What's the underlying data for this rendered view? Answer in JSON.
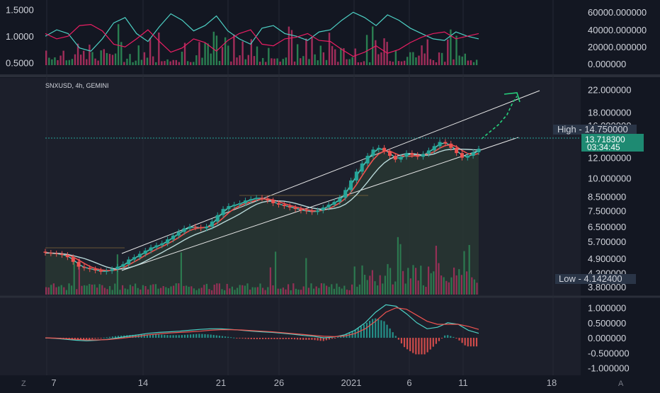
{
  "colors": {
    "background": "#131722",
    "pane": "#1c1f2b",
    "separator": "#2a2e39",
    "up": "#26a69a",
    "down": "#ef5350",
    "volume_up": "#2e8b57",
    "volume_down": "#b03060",
    "ma_fast": "#4dd0c4",
    "ma_mid": "#ef5350",
    "ma_slow": "#b8d8d8",
    "trend": "#e8e8e8",
    "arrow": "#26d07c",
    "price_tag": "#1e8a72",
    "hl_tag": "#2a3547"
  },
  "icons": {
    "left_corner": "Z",
    "right_corner": "A"
  },
  "chart_data": [
    {
      "type": "line",
      "pane": "top-indicator",
      "series": [
        {
          "name": "",
          "color": "#4dd0c4",
          "y": [
            1.0,
            1.12,
            1.05,
            0.78,
            0.72,
            0.95,
            1.25,
            1.35,
            1.05,
            0.9,
            1.18,
            1.42,
            1.3,
            1.1,
            1.2,
            1.38,
            1.1,
            0.95,
            0.85,
            1.15,
            1.2,
            1.05,
            1.0,
            0.92,
            1.08,
            1.12,
            1.3,
            1.45,
            1.35,
            1.2,
            1.4,
            1.3,
            1.15,
            1.05,
            0.95,
            0.92,
            1.08,
            1.0,
            0.95
          ]
        },
        {
          "name": "",
          "color": "#e91e63",
          "y": [
            1.05,
            0.95,
            1.0,
            1.2,
            1.22,
            1.1,
            0.85,
            0.8,
            0.95,
            1.12,
            0.9,
            0.7,
            0.78,
            0.95,
            0.88,
            0.72,
            0.92,
            1.05,
            1.12,
            0.85,
            0.82,
            0.95,
            0.98,
            1.05,
            0.92,
            0.9,
            0.75,
            0.62,
            0.7,
            0.82,
            0.68,
            0.75,
            0.88,
            0.98,
            1.05,
            1.08,
            0.95,
            1.0,
            1.05
          ]
        }
      ],
      "y_ticks": [
        "1.5000",
        "1.0000",
        "0.5000"
      ],
      "right_ticks": [
        "60000.000000",
        "40000.000000",
        "20000.000000",
        "0.000000"
      ],
      "ylim": [
        0.35,
        1.6
      ]
    },
    {
      "type": "candlestick",
      "pane": "main",
      "title": "SNXUSD, 4h, GEMINI",
      "y_scale": "log",
      "ylim": [
        3.55,
        23.5
      ],
      "y_ticks": [
        "22.000000",
        "18.000000",
        "16.000000",
        "14.000000",
        "12.000000",
        "10.000000",
        "8.500000",
        "7.500000",
        "6.500000",
        "5.700000",
        "4.900000",
        "4.300000",
        "3.800000"
      ],
      "close": [
        5.15,
        5.12,
        5.1,
        5.05,
        4.95,
        4.75,
        4.55,
        4.5,
        4.45,
        4.4,
        4.35,
        4.38,
        4.45,
        4.55,
        4.65,
        4.85,
        4.95,
        5.1,
        5.25,
        5.4,
        5.5,
        5.6,
        5.8,
        6.0,
        6.2,
        6.4,
        6.5,
        6.45,
        6.4,
        6.5,
        6.8,
        7.2,
        7.6,
        7.8,
        7.9,
        8.0,
        8.2,
        8.3,
        8.4,
        8.35,
        8.2,
        8.0,
        7.9,
        7.8,
        7.7,
        7.6,
        7.5,
        7.45,
        7.4,
        7.5,
        7.7,
        7.9,
        8.1,
        8.4,
        9.0,
        9.8,
        10.6,
        11.4,
        12.2,
        12.9,
        13.1,
        12.7,
        12.2,
        11.8,
        12.1,
        12.5,
        12.3,
        12.1,
        12.4,
        12.8,
        13.3,
        13.8,
        13.6,
        13.1,
        12.5,
        12.0,
        12.2,
        12.6,
        13.0
      ],
      "high_label": "High",
      "high_value": "14.750000",
      "low_label": "Low",
      "low_value": "4.142400",
      "last_price": "13.718300",
      "countdown": "03:34:45",
      "overlays": [
        {
          "name": "",
          "kind": "moving-average",
          "color": "#4dd0c4"
        },
        {
          "name": "",
          "kind": "moving-average",
          "color": "#ef5350"
        },
        {
          "name": "",
          "kind": "moving-average",
          "color": "#b8d8d8"
        },
        {
          "name": "",
          "kind": "trend-channel",
          "color": "#e8e8e8"
        },
        {
          "name": "",
          "kind": "projection-arrow",
          "color": "#26d07c"
        }
      ]
    },
    {
      "type": "line",
      "pane": "macd",
      "series": [
        {
          "name": "",
          "color": "#4dd0c4",
          "y": [
            0.0,
            -0.02,
            -0.05,
            -0.08,
            -0.1,
            -0.08,
            -0.05,
            0.0,
            0.05,
            0.1,
            0.15,
            0.18,
            0.2,
            0.22,
            0.25,
            0.28,
            0.3,
            0.3,
            0.28,
            0.25,
            0.22,
            0.2,
            0.18,
            0.15,
            0.12,
            0.08,
            0.05,
            0.0,
            0.03,
            0.1,
            0.25,
            0.5,
            0.85,
            1.1,
            1.05,
            0.8,
            0.5,
            0.3,
            0.35,
            0.5,
            0.45,
            0.25,
            0.15
          ]
        },
        {
          "name": "",
          "color": "#ef5350",
          "y": [
            0.0,
            -0.01,
            -0.03,
            -0.05,
            -0.07,
            -0.07,
            -0.06,
            -0.03,
            0.01,
            0.05,
            0.1,
            0.13,
            0.16,
            0.18,
            0.2,
            0.22,
            0.25,
            0.27,
            0.27,
            0.26,
            0.24,
            0.22,
            0.2,
            0.17,
            0.14,
            0.11,
            0.08,
            0.05,
            0.04,
            0.06,
            0.14,
            0.3,
            0.55,
            0.85,
            1.0,
            0.95,
            0.75,
            0.55,
            0.45,
            0.45,
            0.45,
            0.38,
            0.28
          ]
        }
      ],
      "y_ticks": [
        "1.000000",
        "0.500000",
        "0.000000",
        "-0.500000",
        "-1.000000"
      ],
      "ylim": [
        -1.2,
        1.25
      ]
    }
  ],
  "x_axis": {
    "ticks": [
      "7",
      "14",
      "21",
      "26",
      "2021",
      "6",
      "11",
      "18"
    ]
  }
}
